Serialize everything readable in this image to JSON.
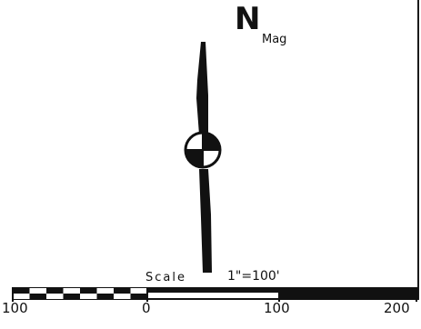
{
  "north_arrow": {
    "letter": "N",
    "subscript": "Mag",
    "icon": "north-arrow-icon",
    "benchmark_icon": "quartered-circle-icon"
  },
  "scale_bar": {
    "label": "Scale",
    "ratio": "1\"=100'",
    "ticks": [
      "100",
      "0",
      "100",
      "200"
    ],
    "checkered_segments": 8,
    "colors": {
      "ink": "#111111",
      "paper": "#ffffff"
    }
  }
}
